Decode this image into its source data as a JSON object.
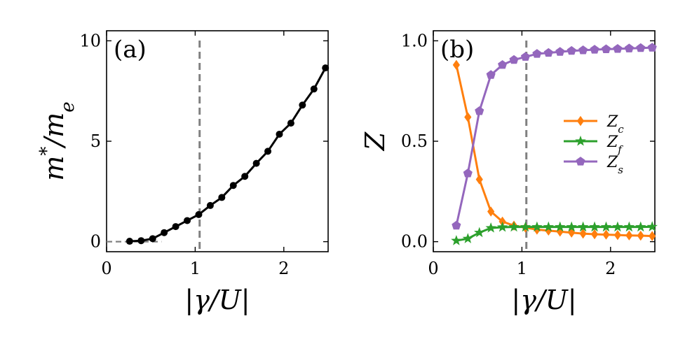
{
  "chart_data": [
    {
      "type": "line",
      "panel_label": "(a)",
      "xlabel": "|γ/U|",
      "ylabel": "m*/m_e",
      "xlim": [
        0,
        2.5
      ],
      "ylim": [
        -0.5,
        10.5
      ],
      "xticks": [
        0,
        1,
        2
      ],
      "yticks": [
        0,
        5,
        10
      ],
      "xtick_labels": [
        "0",
        "1",
        "2"
      ],
      "ytick_labels": [
        "0",
        "5",
        "10"
      ],
      "vline_x": 1.05,
      "hline": {
        "y": 0,
        "x_start": 0,
        "x_end": 0.62
      },
      "series": [
        {
          "name": "m*/m_e",
          "color": "#000000",
          "marker": "circle",
          "x": [
            0.26,
            0.39,
            0.52,
            0.65,
            0.78,
            0.91,
            1.04,
            1.17,
            1.3,
            1.43,
            1.56,
            1.69,
            1.82,
            1.95,
            2.08,
            2.21,
            2.34,
            2.47
          ],
          "y": [
            0.02,
            0.05,
            0.15,
            0.45,
            0.75,
            1.05,
            1.35,
            1.8,
            2.2,
            2.8,
            3.25,
            3.9,
            4.5,
            5.35,
            5.9,
            6.8,
            7.6,
            8.65
          ]
        }
      ]
    },
    {
      "type": "line",
      "panel_label": "(b)",
      "xlabel": "|γ/U|",
      "ylabel": "Z",
      "xlim": [
        0,
        2.5
      ],
      "ylim": [
        -0.05,
        1.05
      ],
      "xticks": [
        0,
        1,
        2
      ],
      "yticks": [
        0.0,
        0.5,
        1.0
      ],
      "xtick_labels": [
        "0",
        "1",
        "2"
      ],
      "ytick_labels": [
        "0.0",
        "0.5",
        "1.0"
      ],
      "vline_x": 1.05,
      "legend_position": "center-right",
      "series": [
        {
          "name": "Z",
          "subscript": "c",
          "color": "#ff7f0e",
          "marker": "diamond",
          "x": [
            0.26,
            0.39,
            0.52,
            0.65,
            0.78,
            0.91,
            1.04,
            1.17,
            1.3,
            1.43,
            1.56,
            1.69,
            1.82,
            1.95,
            2.08,
            2.21,
            2.34,
            2.47
          ],
          "y": [
            0.88,
            0.62,
            0.31,
            0.15,
            0.1,
            0.08,
            0.07,
            0.06,
            0.055,
            0.05,
            0.045,
            0.04,
            0.037,
            0.035,
            0.033,
            0.031,
            0.03,
            0.028
          ]
        },
        {
          "name": "Z",
          "subscript": "f",
          "color": "#2ca02c",
          "marker": "star",
          "x": [
            0.26,
            0.39,
            0.52,
            0.65,
            0.78,
            0.91,
            1.04,
            1.17,
            1.3,
            1.43,
            1.56,
            1.69,
            1.82,
            1.95,
            2.08,
            2.21,
            2.34,
            2.47
          ],
          "y": [
            0.005,
            0.015,
            0.045,
            0.068,
            0.072,
            0.073,
            0.073,
            0.073,
            0.073,
            0.073,
            0.073,
            0.073,
            0.073,
            0.073,
            0.073,
            0.073,
            0.073,
            0.074
          ]
        },
        {
          "name": "Z",
          "subscript": "s",
          "color": "#9467bd",
          "marker": "pentagon",
          "x": [
            0.26,
            0.39,
            0.52,
            0.65,
            0.78,
            0.91,
            1.04,
            1.17,
            1.3,
            1.43,
            1.56,
            1.69,
            1.82,
            1.95,
            2.08,
            2.21,
            2.34,
            2.47
          ],
          "y": [
            0.08,
            0.34,
            0.65,
            0.83,
            0.88,
            0.905,
            0.92,
            0.935,
            0.94,
            0.945,
            0.95,
            0.953,
            0.956,
            0.958,
            0.96,
            0.962,
            0.964,
            0.966
          ]
        }
      ]
    }
  ]
}
